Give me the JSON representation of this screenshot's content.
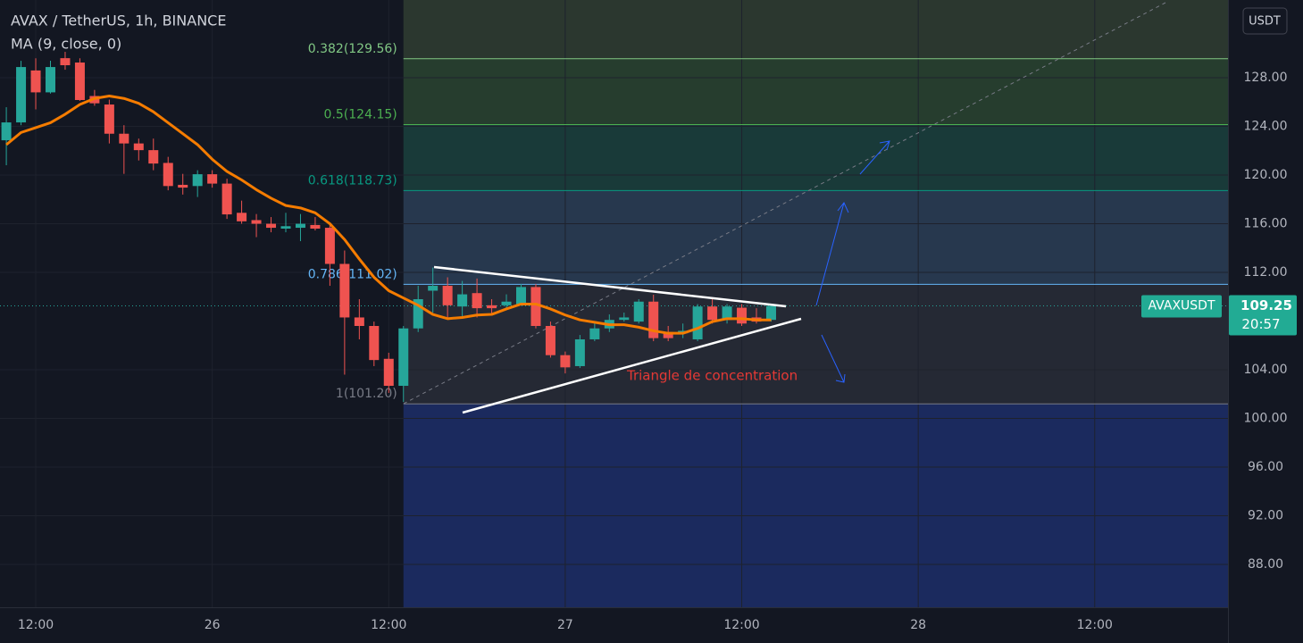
{
  "chart_data": {
    "type": "candlestick",
    "title": "AVAX / TetherUS, 1h, BINANCE",
    "subtitle": "MA (9, close, 0)",
    "currency_button": "USDT",
    "annotation": "Triangle de concentration",
    "annotation_color": "#e53935",
    "up_color": "#26a69a",
    "down_color": "#ef5350",
    "grid": true,
    "ylim": [
      84.48,
      134.39
    ],
    "yticks": [
      {
        "value": 128,
        "label": "128.00"
      },
      {
        "value": 124,
        "label": "124.00"
      },
      {
        "value": 120,
        "label": "120.00"
      },
      {
        "value": 116,
        "label": "116.00"
      },
      {
        "value": 112,
        "label": "112.00"
      },
      {
        "value": 104,
        "label": "104.00"
      },
      {
        "value": 100,
        "label": "100.00"
      },
      {
        "value": 96,
        "label": "96.00"
      },
      {
        "value": 92,
        "label": "92.00"
      },
      {
        "value": 88,
        "label": "88.00"
      }
    ],
    "xlim": [
      -0.43,
      83.06
    ],
    "xticks": [
      {
        "value": 2,
        "label": "12:00"
      },
      {
        "value": 14,
        "label": "26"
      },
      {
        "value": 26,
        "label": "12:00"
      },
      {
        "value": 38,
        "label": "27"
      },
      {
        "value": 50,
        "label": "12:00"
      },
      {
        "value": 62,
        "label": "28"
      },
      {
        "value": 74,
        "label": "12:00"
      }
    ],
    "open": [
      122.86,
      124.33,
      128.6,
      126.8,
      129.61,
      129.25,
      126.5,
      125.8,
      123.4,
      122.6,
      122.05,
      121.0,
      119.2,
      119.1,
      120.07,
      119.3,
      116.9,
      116.3,
      116.0,
      115.6,
      115.67,
      115.9,
      115.67,
      112.7,
      108.3,
      107.6,
      104.9,
      102.68,
      107.4,
      110.5,
      110.9,
      109.2,
      110.3,
      109.3,
      109.3,
      109.4,
      110.8,
      107.6,
      105.2,
      104.3,
      106.5,
      107.4,
      108.1,
      107.96,
      109.6,
      107.1,
      107.0,
      106.5,
      109.2,
      108.1,
      109.1,
      108.3,
      108.1
    ],
    "high": [
      125.58,
      129.39,
      129.6,
      129.4,
      130.13,
      129.6,
      127.0,
      126.2,
      124.1,
      123.0,
      123.0,
      121.5,
      120.1,
      120.4,
      120.4,
      119.7,
      117.9,
      116.8,
      116.55,
      116.9,
      116.8,
      116.55,
      116.0,
      113.8,
      109.8,
      107.96,
      105.4,
      107.6,
      110.9,
      112.4,
      111.6,
      111.3,
      111.5,
      109.8,
      110.2,
      111.05,
      111.05,
      107.96,
      105.5,
      106.86,
      107.96,
      108.55,
      108.7,
      109.8,
      110.17,
      107.6,
      107.8,
      109.4,
      109.9,
      109.4,
      109.4,
      109.06,
      109.4
    ],
    "low": [
      120.81,
      124.1,
      125.4,
      126.7,
      128.66,
      126.1,
      125.7,
      122.6,
      120.1,
      121.2,
      120.4,
      118.75,
      118.4,
      118.2,
      118.97,
      116.4,
      116.0,
      114.9,
      115.3,
      115.3,
      114.57,
      115.45,
      110.9,
      103.6,
      106.5,
      104.3,
      102.1,
      101.35,
      107.1,
      108.7,
      108.3,
      108.3,
      108.3,
      108.55,
      109.06,
      109.3,
      107.4,
      105.0,
      103.7,
      104.15,
      106.35,
      107.1,
      107.96,
      107.8,
      106.35,
      106.35,
      106.6,
      106.35,
      107.8,
      107.8,
      107.6,
      107.8,
      107.96
    ],
    "close": [
      124.33,
      128.88,
      126.8,
      128.88,
      129.03,
      126.17,
      125.9,
      123.4,
      122.6,
      122.05,
      120.95,
      119.1,
      118.97,
      120.07,
      119.3,
      116.77,
      116.2,
      116.0,
      115.67,
      115.8,
      116.0,
      115.6,
      112.7,
      108.3,
      107.6,
      104.8,
      102.68,
      107.4,
      109.8,
      110.9,
      109.3,
      110.2,
      109.06,
      109.06,
      109.6,
      110.8,
      107.6,
      105.2,
      104.2,
      106.5,
      107.4,
      108.1,
      108.3,
      109.6,
      106.6,
      106.6,
      107.2,
      109.2,
      108.1,
      109.2,
      107.8,
      107.96,
      109.25
    ],
    "ma": {
      "color": "#f57c00",
      "values": [
        122.5,
        123.5,
        123.9,
        124.3,
        125.0,
        125.8,
        126.3,
        126.5,
        126.3,
        125.9,
        125.2,
        124.3,
        123.4,
        122.5,
        121.3,
        120.3,
        119.6,
        118.8,
        118.1,
        117.5,
        117.3,
        116.9,
        116.0,
        114.7,
        113.1,
        111.6,
        110.5,
        109.9,
        109.3,
        108.55,
        108.2,
        108.3,
        108.5,
        108.55,
        109.0,
        109.4,
        109.4,
        109.0,
        108.5,
        108.1,
        107.9,
        107.7,
        107.7,
        107.5,
        107.2,
        107.0,
        107.0,
        107.4,
        107.96,
        108.2,
        108.2,
        108.1,
        108.1
      ]
    },
    "fib_levels": [
      {
        "value": 129.56,
        "label": "0.382(129.56)",
        "color": "#81c784",
        "fill": "#2b372f"
      },
      {
        "value": 124.15,
        "label": "0.5(124.15)",
        "color": "#4caf50",
        "fill": "#263d2e"
      },
      {
        "value": 118.73,
        "label": "0.618(118.73)",
        "color": "#089981",
        "fill": "#193a39"
      },
      {
        "value": 111.02,
        "label": "0.786(111.02)",
        "color": "#64b5f6",
        "fill": "#27384e"
      },
      {
        "value": 101.2,
        "label": "1(101.20)",
        "color": "#787b86",
        "fill": "#252934"
      }
    ],
    "fib_below_fill": "#1b2a5e",
    "price_tag": {
      "symbol": "AVAXUSDT",
      "countdown": "20:57",
      "color": "#22ab94"
    }
  }
}
